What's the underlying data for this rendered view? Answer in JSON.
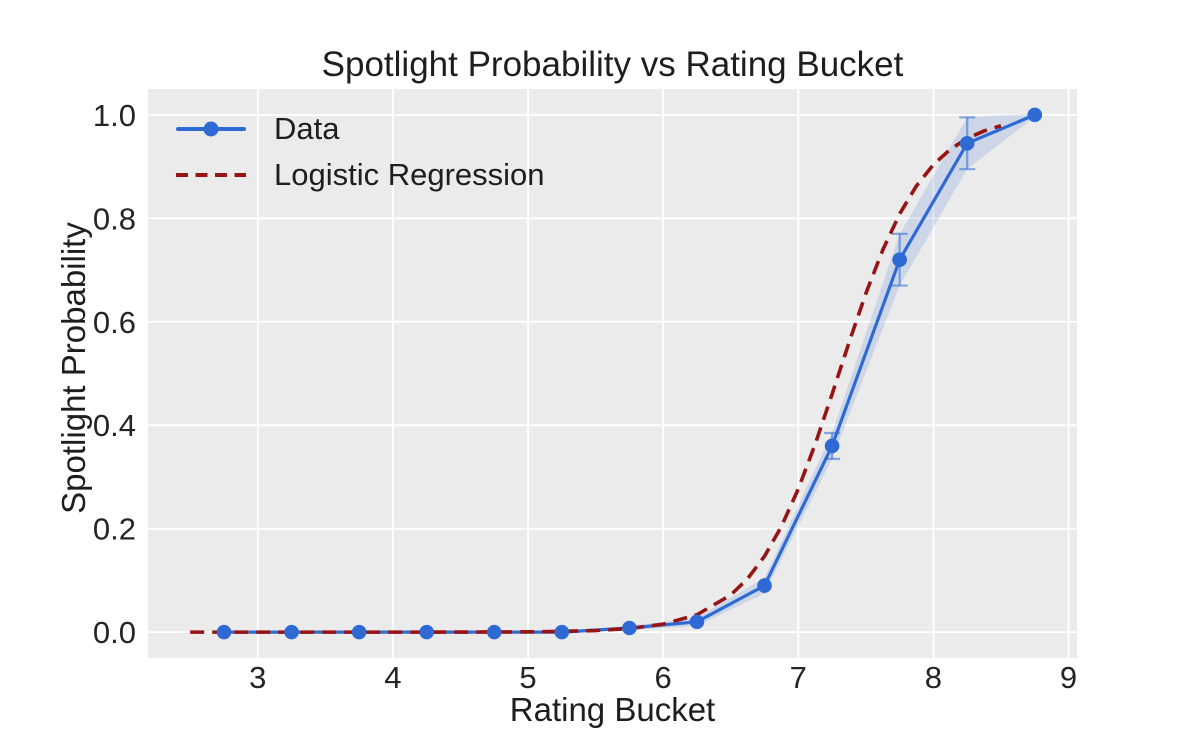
{
  "figure": {
    "background": "#ffffff"
  },
  "chart_data": {
    "type": "line",
    "title": "Spotlight Probability vs Rating Bucket",
    "xlabel": "Rating Bucket",
    "ylabel": "Spotlight Probability",
    "xlim": [
      2.1875,
      9.0625
    ],
    "ylim": [
      -0.05,
      1.05
    ],
    "xticks": [
      3,
      4,
      5,
      6,
      7,
      8,
      9
    ],
    "yticks": [
      0.0,
      0.2,
      0.4,
      0.6,
      0.8,
      1.0
    ],
    "grid": true,
    "plot_background": "#ebebeb",
    "grid_color": "#ffffff",
    "text_color": "#252525",
    "legend": {
      "position": "upper left",
      "frame": false
    },
    "series": [
      {
        "name": "Data",
        "style": "solid",
        "marker": "circle",
        "color": "#2f6ad4",
        "line_width": 3.2,
        "marker_radius": 7.3,
        "x": [
          2.75,
          3.25,
          3.75,
          4.25,
          4.75,
          5.25,
          5.75,
          6.25,
          6.75,
          7.25,
          7.75,
          8.25,
          8.75
        ],
        "y": [
          0.0,
          0.0,
          0.0,
          0.0,
          0.0,
          0.0,
          0.008,
          0.02,
          0.09,
          0.36,
          0.72,
          0.945,
          1.0
        ],
        "yerr": [
          0.0,
          0.0,
          0.0,
          0.0,
          0.0,
          0.0,
          0.004,
          0.008,
          0.015,
          0.025,
          0.05,
          0.05,
          0.004
        ],
        "band_opacity": 0.16,
        "errorbar_opacity": 0.55
      },
      {
        "name": "Logistic Regression",
        "style": "dashed",
        "color": "#971414",
        "line_width": 3.6,
        "dash": [
          14,
          8
        ],
        "logistic": {
          "x0": 7.3,
          "k": 3.2
        },
        "x": [
          2.5,
          3.0,
          3.5,
          4.0,
          4.5,
          5.0,
          5.25,
          5.5,
          5.75,
          6.0,
          6.25,
          6.5,
          6.625,
          6.75,
          6.875,
          7.0,
          7.125,
          7.25,
          7.375,
          7.5,
          7.625,
          7.75,
          7.875,
          8.0,
          8.125,
          8.25,
          8.375,
          8.5
        ],
        "y": [
          0.0,
          0.0,
          0.0,
          0.0,
          0.0001,
          0.0006,
          0.0014,
          0.0031,
          0.007,
          0.0154,
          0.0336,
          0.0718,
          0.1034,
          0.1468,
          0.2043,
          0.2769,
          0.3635,
          0.4601,
          0.5597,
          0.6548,
          0.7388,
          0.8085,
          0.863,
          0.9038,
          0.9334,
          0.9544,
          0.9689,
          0.979
        ]
      }
    ]
  }
}
